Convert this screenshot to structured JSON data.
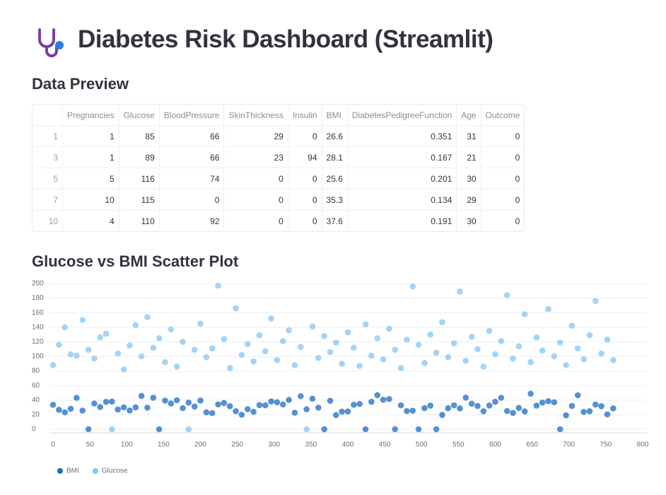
{
  "header": {
    "title": "Diabetes Risk Dashboard (Streamlit)"
  },
  "preview": {
    "heading": "Data Preview",
    "table": {
      "columns": [
        "Pregnancies",
        "Glucose",
        "BloodPressure",
        "SkinThickness",
        "Insulin",
        "BMI",
        "DiabetesPedigreeFunction",
        "Age",
        "Outcome"
      ],
      "rows": [
        {
          "index": 1,
          "cells": [
            1,
            85,
            66,
            29,
            0,
            26.6,
            0.351,
            31,
            0
          ]
        },
        {
          "index": 3,
          "cells": [
            1,
            89,
            66,
            23,
            94,
            28.1,
            0.167,
            21,
            0
          ]
        },
        {
          "index": 5,
          "cells": [
            5,
            116,
            74,
            0,
            0,
            25.6,
            0.201,
            30,
            0
          ]
        },
        {
          "index": 7,
          "cells": [
            10,
            115,
            0,
            0,
            0,
            35.3,
            0.134,
            29,
            0
          ]
        },
        {
          "index": 10,
          "cells": [
            4,
            110,
            92,
            0,
            0,
            37.6,
            0.191,
            30,
            0
          ]
        }
      ]
    }
  },
  "chart_data": {
    "type": "scatter",
    "title": "Glucose vs BMI Scatter Plot",
    "x": [
      0,
      8,
      16,
      24,
      32,
      40,
      48,
      56,
      64,
      72,
      80,
      88,
      96,
      104,
      112,
      120,
      128,
      136,
      144,
      152,
      160,
      168,
      176,
      184,
      192,
      200,
      208,
      216,
      224,
      232,
      240,
      248,
      256,
      264,
      272,
      280,
      288,
      296,
      304,
      312,
      320,
      328,
      336,
      344,
      352,
      360,
      368,
      376,
      384,
      392,
      400,
      408,
      416,
      424,
      432,
      440,
      448,
      456,
      464,
      472,
      480,
      488,
      496,
      504,
      512,
      520,
      528,
      536,
      544,
      552,
      560,
      568,
      576,
      584,
      592,
      600,
      608,
      616,
      624,
      632,
      640,
      648,
      656,
      664,
      672,
      680,
      688,
      696,
      704,
      712,
      720,
      728,
      736,
      744,
      752,
      760
    ],
    "series": [
      {
        "name": "BMI",
        "color": "#1c6bc6",
        "values": [
          33.6,
          26.6,
          23.3,
          28.1,
          43.1,
          25.6,
          0,
          35.3,
          30.5,
          37.6,
          38,
          27.1,
          30.1,
          25.8,
          30,
          45.8,
          29.6,
          43.3,
          0,
          39.3,
          35.4,
          39.8,
          29,
          36.6,
          31.1,
          39.4,
          23.2,
          22.2,
          34.1,
          36,
          31.6,
          24.8,
          19.9,
          27.6,
          24,
          33.2,
          32.9,
          38.2,
          37.1,
          34,
          40.2,
          22.7,
          45.4,
          27.4,
          42,
          29.7,
          0,
          39.1,
          19.4,
          24.2,
          24.4,
          33.7,
          34.7,
          0,
          37.7,
          46.8,
          40.5,
          41.5,
          0,
          32.9,
          25,
          25.4,
          0,
          29,
          32.5,
          0,
          19.6,
          28.9,
          32.9,
          28.6,
          43.4,
          35.1,
          32,
          24.7,
          32.6,
          37.7,
          43.2,
          25,
          22.4,
          29.3,
          24.6,
          48.8,
          32.4,
          36.6,
          38.5,
          37.1,
          0,
          19.1,
          32,
          46.7,
          23.8,
          24.7,
          33.9,
          31.6,
          20.4,
          28.7
        ]
      },
      {
        "name": "Glucose",
        "color": "#83c5f5",
        "values": [
          88,
          116,
          140,
          103,
          101,
          150,
          109,
          97,
          126,
          131,
          0,
          104,
          82,
          115,
          143,
          100,
          154,
          112,
          125,
          92,
          137,
          86,
          120,
          0,
          109,
          145,
          99,
          111,
          197,
          124,
          84,
          166,
          102,
          117,
          93,
          129,
          107,
          152,
          95,
          121,
          136,
          88,
          113,
          0,
          141,
          98,
          128,
          106,
          119,
          90,
          133,
          112,
          87,
          144,
          101,
          125,
          96,
          138,
          109,
          84,
          123,
          196,
          116,
          91,
          130,
          105,
          147,
          99,
          118,
          189,
          94,
          127,
          110,
          86,
          135,
          103,
          121,
          184,
          97,
          114,
          158,
          92,
          126,
          108,
          165,
          100,
          119,
          88,
          142,
          111,
          96,
          129,
          176,
          104,
          123,
          95
        ]
      }
    ],
    "xlim": [
      0,
      800
    ],
    "xticks": [
      0,
      50,
      100,
      150,
      200,
      250,
      300,
      350,
      400,
      450,
      500,
      550,
      600,
      650,
      700,
      750,
      800
    ],
    "ylim": [
      0,
      200
    ],
    "yticks": [
      0,
      20,
      40,
      60,
      80,
      100,
      120,
      140,
      160,
      180,
      200
    ],
    "grid": true
  }
}
